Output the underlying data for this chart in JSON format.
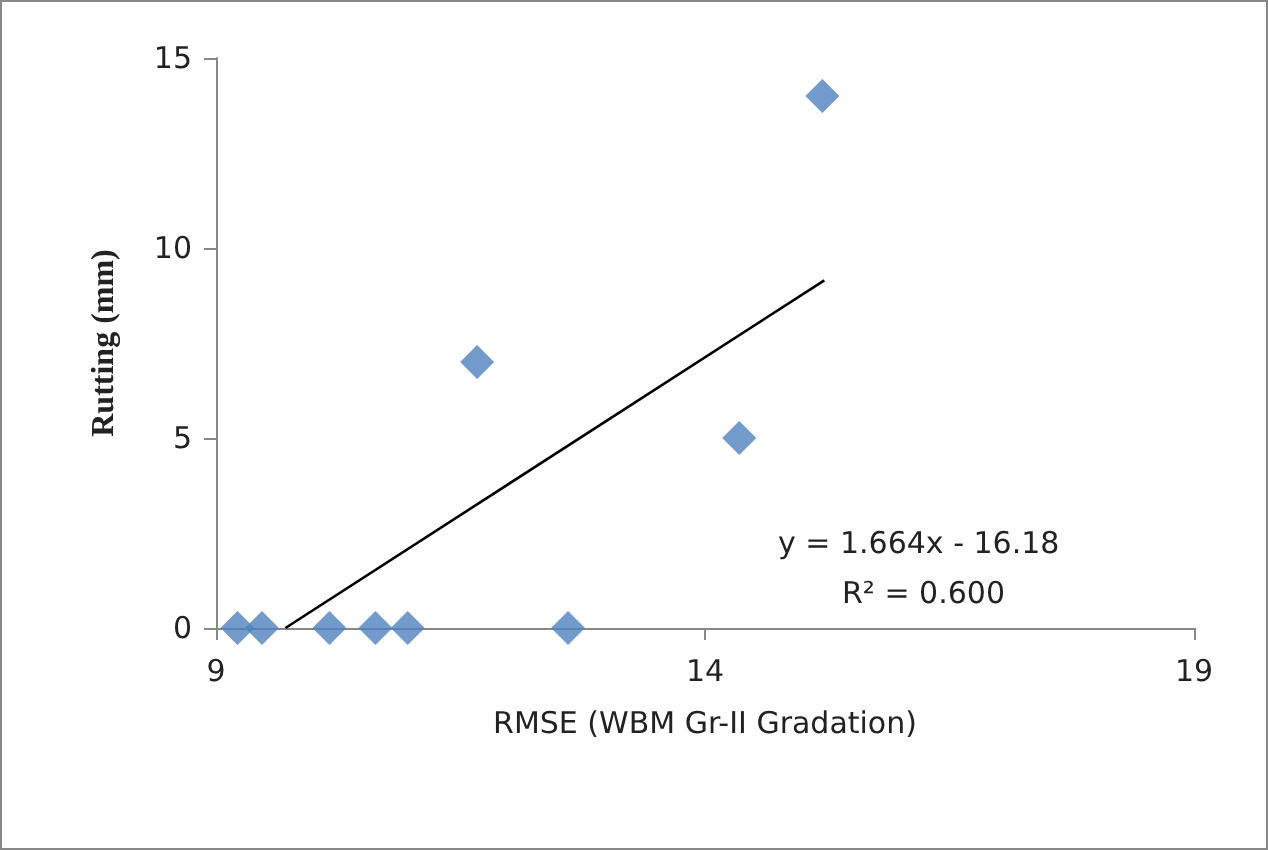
{
  "chart_data": {
    "type": "scatter",
    "xlabel": "RMSE (WBM Gr-II Gradation)",
    "ylabel": "Rutting (mm)",
    "xlim": [
      9,
      19
    ],
    "xticks": [
      9,
      14,
      19
    ],
    "ylim": [
      0,
      15
    ],
    "yticks": [
      0,
      5,
      10,
      15
    ],
    "grid": false,
    "marker": "diamond",
    "series": [
      {
        "color": "#4f81bd",
        "x": [
          9.22,
          9.47,
          10.16,
          10.63,
          10.96,
          12.6,
          11.67,
          14.35,
          15.2
        ],
        "values": [
          0,
          0,
          0,
          0,
          0,
          0,
          7,
          5,
          14
        ]
      },
      {
        "type": "line",
        "color": "#000000",
        "marker": "none",
        "line_style": "solid",
        "x": [
          9.71,
          15.22
        ],
        "values": [
          0,
          9.15
        ]
      }
    ],
    "annotations": [
      "y = 1.664x - 16.18",
      "R² = 0.600"
    ]
  }
}
